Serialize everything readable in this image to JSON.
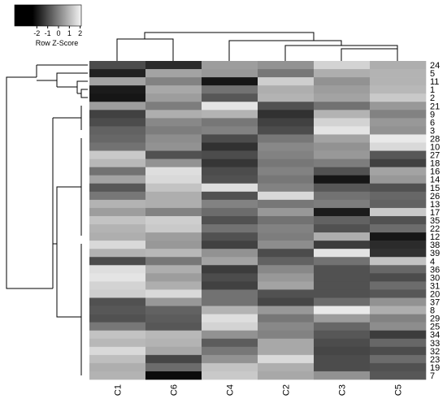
{
  "chart_data": {
    "type": "heatmap",
    "rows": [
      "24",
      "5",
      "11",
      "1",
      "2",
      "21",
      "9",
      "6",
      "3",
      "28",
      "10",
      "27",
      "18",
      "16",
      "14",
      "15",
      "26",
      "13",
      "17",
      "35",
      "22",
      "12",
      "38",
      "39",
      "4",
      "36",
      "30",
      "31",
      "20",
      "37",
      "8",
      "29",
      "25",
      "34",
      "33",
      "32",
      "23",
      "19",
      "7"
    ],
    "columns": [
      "C1",
      "C6",
      "C4",
      "C2",
      "C3",
      "C5"
    ],
    "values": [
      [
        -1.0,
        -1.6,
        0.5,
        0.3,
        1.5,
        0.8
      ],
      [
        -1.8,
        0.6,
        0.4,
        -0.2,
        0.8,
        0.9
      ],
      [
        0.6,
        0.0,
        -2.0,
        1.4,
        0.3,
        0.9
      ],
      [
        -1.9,
        0.7,
        -0.3,
        0.8,
        0.5,
        1.0
      ],
      [
        -2.0,
        0.5,
        -0.8,
        0.9,
        0.6,
        1.3
      ],
      [
        0.5,
        -0.1,
        1.8,
        -0.9,
        -0.3,
        0.4
      ],
      [
        -1.2,
        0.8,
        0.9,
        -1.5,
        0.9,
        0.0
      ],
      [
        -1.0,
        0.1,
        -0.2,
        -1.2,
        1.5,
        0.4
      ],
      [
        -0.6,
        -0.1,
        0.0,
        -1.0,
        1.8,
        0.3
      ],
      [
        -0.5,
        0.2,
        -1.0,
        -0.2,
        0.6,
        1.9
      ],
      [
        -0.3,
        0.3,
        -1.5,
        0.1,
        0.3,
        1.6
      ],
      [
        1.3,
        -0.9,
        -1.0,
        0.0,
        0.4,
        -0.8
      ],
      [
        1.0,
        0.3,
        -1.4,
        -0.2,
        -0.1,
        -1.2
      ],
      [
        -0.3,
        1.7,
        -1.0,
        0.0,
        -0.9,
        0.6
      ],
      [
        0.6,
        1.6,
        -0.9,
        -0.2,
        -2.0,
        0.4
      ],
      [
        -0.8,
        1.2,
        1.7,
        0.0,
        -0.8,
        -0.9
      ],
      [
        -0.2,
        0.8,
        -0.9,
        1.6,
        -0.3,
        -0.5
      ],
      [
        0.9,
        0.8,
        0.0,
        -0.2,
        -0.1,
        -0.6
      ],
      [
        0.5,
        0.0,
        -0.4,
        0.4,
        -1.9,
        1.3
      ],
      [
        1.2,
        1.4,
        -0.9,
        -0.3,
        -0.6,
        -0.9
      ],
      [
        0.9,
        1.3,
        -0.3,
        0.0,
        -0.9,
        -0.4
      ],
      [
        0.8,
        0.5,
        -0.9,
        -0.1,
        0.8,
        -2.0
      ],
      [
        1.6,
        0.4,
        -1.2,
        0.2,
        -1.3,
        -1.6
      ],
      [
        0.9,
        1.0,
        0.3,
        -1.0,
        1.8,
        -1.5
      ],
      [
        -1.0,
        -0.2,
        0.6,
        -0.6,
        -0.3,
        1.2
      ],
      [
        1.7,
        0.8,
        -1.3,
        0.1,
        -0.9,
        -0.5
      ],
      [
        1.8,
        0.5,
        -1.0,
        0.4,
        -0.9,
        -1.0
      ],
      [
        1.5,
        0.8,
        -1.2,
        0.6,
        -0.9,
        -0.4
      ],
      [
        1.4,
        1.6,
        -0.3,
        -0.9,
        -0.9,
        -0.8
      ],
      [
        -0.9,
        0.4,
        -0.3,
        -1.1,
        -0.4,
        0.3
      ],
      [
        -0.8,
        -0.6,
        0.9,
        0.4,
        1.9,
        0.8
      ],
      [
        -0.9,
        -0.7,
        1.7,
        -0.2,
        0.5,
        0.0
      ],
      [
        -0.2,
        -0.8,
        1.5,
        0.1,
        -0.5,
        0.2
      ],
      [
        1.2,
        1.0,
        0.3,
        0.0,
        -0.8,
        -1.3
      ],
      [
        1.0,
        0.9,
        -0.7,
        0.7,
        -1.0,
        -0.5
      ],
      [
        1.6,
        0.7,
        -0.2,
        0.7,
        -1.1,
        -1.0
      ],
      [
        1.1,
        -1.1,
        0.3,
        1.6,
        -1.0,
        -0.4
      ],
      [
        0.8,
        -0.4,
        1.2,
        0.8,
        -1.0,
        -0.9
      ],
      [
        0.9,
        -2.2,
        1.3,
        0.7,
        0.3,
        -0.8
      ]
    ],
    "colors": {
      "low": "#000000",
      "high": "#f4f4f4"
    },
    "legend": {
      "title": "Row Z-Score",
      "lim": [
        -2.4,
        2.1
      ],
      "ticks": [
        -2,
        -1,
        0,
        1,
        2
      ]
    }
  }
}
